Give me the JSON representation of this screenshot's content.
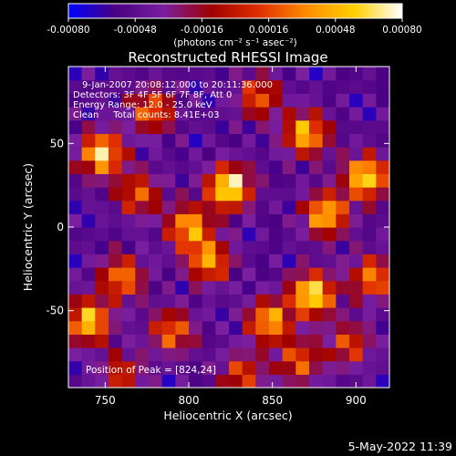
{
  "colorbar": {
    "ticks": [
      "-0.00080",
      "-0.00048",
      "-0.00016",
      "0.00016",
      "0.00048",
      "0.00080"
    ],
    "unit_label": "(photons cm⁻² s⁻¹ asec⁻²)",
    "range": [
      -0.0008,
      0.0008
    ],
    "colormap": [
      "#0000ff",
      "#4b0082",
      "#7a1fa0",
      "#a00000",
      "#e03000",
      "#ff8c00",
      "#ffd000",
      "#ffffff"
    ]
  },
  "chart_data": {
    "type": "heatmap",
    "title": "Reconstructed RHESSI Image",
    "xlabel": "Heliocentric X (arcsec)",
    "ylabel": "Heliocentric Y (arcsec)",
    "xlim": [
      728,
      920
    ],
    "ylim": [
      -96,
      96
    ],
    "x_ticks": [
      750,
      800,
      850,
      900
    ],
    "y_ticks": [
      50,
      0,
      -50
    ],
    "annotations": [
      "9-Jan-2007 20:08:12.000 to 20:11:36.000",
      "Detectors: 3F 4F 5F 6F 7F 8F, Att 0",
      "Energy Range: 12.0 - 25.0 keV",
      "Clean     Total counts: 8.41E+03"
    ],
    "peak_label": "Position of Peak = [824,24]",
    "peak": [
      824,
      24
    ],
    "sources": [
      {
        "x": 824,
        "y": 24,
        "v": 1.0
      },
      {
        "x": 874,
        "y": -40,
        "v": 0.95
      },
      {
        "x": 906,
        "y": 30,
        "v": 0.9
      },
      {
        "x": 882,
        "y": 8,
        "v": 0.8
      },
      {
        "x": 870,
        "y": 56,
        "v": 0.8
      },
      {
        "x": 748,
        "y": 44,
        "v": 0.9
      },
      {
        "x": 740,
        "y": -56,
        "v": 0.85
      },
      {
        "x": 800,
        "y": 0,
        "v": 0.75
      },
      {
        "x": 812,
        "y": -20,
        "v": 0.7
      },
      {
        "x": 848,
        "y": -56,
        "v": 0.75
      },
      {
        "x": 760,
        "y": -30,
        "v": 0.65
      },
      {
        "x": 790,
        "y": -62,
        "v": 0.6
      },
      {
        "x": 866,
        "y": -80,
        "v": 0.55
      },
      {
        "x": 910,
        "y": -30,
        "v": 0.65
      },
      {
        "x": 778,
        "y": 70,
        "v": 0.6
      },
      {
        "x": 770,
        "y": 20,
        "v": 0.55
      },
      {
        "x": 842,
        "y": 78,
        "v": 0.55
      },
      {
        "x": 832,
        "y": -88,
        "v": 0.5
      },
      {
        "x": 760,
        "y": -88,
        "v": 0.45
      },
      {
        "x": 896,
        "y": -70,
        "v": 0.5
      }
    ]
  },
  "timestamp": "5-May-2022 11:39"
}
